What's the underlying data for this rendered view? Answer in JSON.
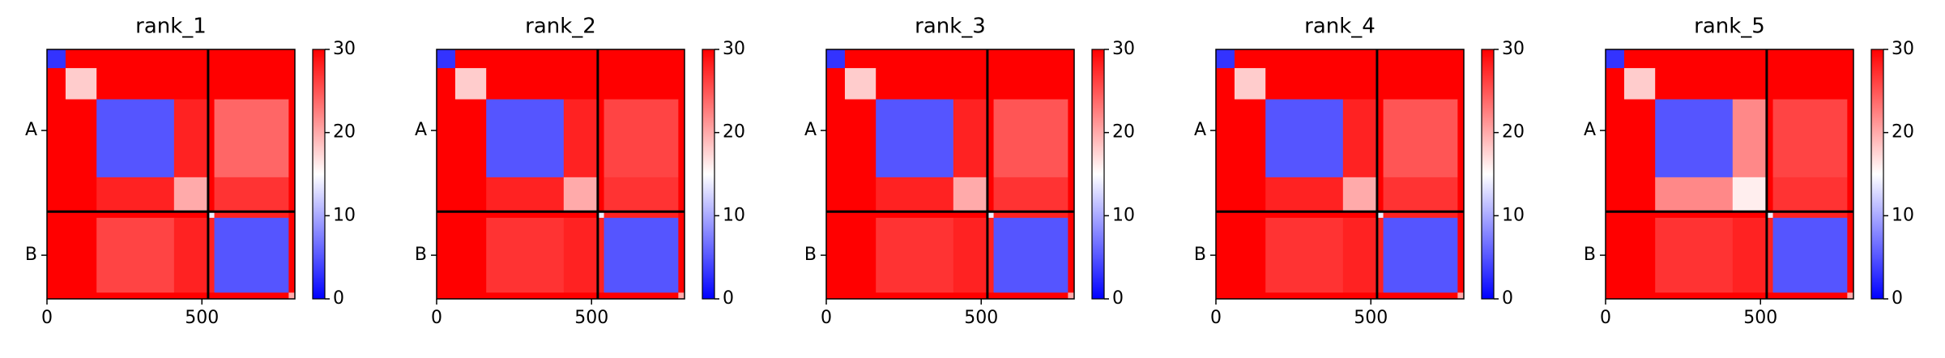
{
  "chart_data": [
    {
      "type": "heatmap",
      "title": "rank_1",
      "colormap": "bwr",
      "edges": [
        0,
        60,
        160,
        410,
        520,
        540,
        780,
        800
      ],
      "xlim": [
        0,
        800
      ],
      "ylim": [
        0,
        800
      ],
      "xticks": [
        0,
        500
      ],
      "yticks": [
        {
          "value": 260,
          "label": "A"
        },
        {
          "value": 660,
          "label": "B"
        }
      ],
      "chain_breaks": [
        520
      ],
      "clim": [
        0,
        30
      ],
      "cticks": [
        0,
        10,
        20,
        30
      ],
      "values": [
        [
          3,
          30,
          30,
          30,
          30,
          30,
          30
        ],
        [
          30,
          18,
          30,
          30,
          30,
          30,
          30
        ],
        [
          30,
          30,
          5,
          28,
          30,
          24,
          30
        ],
        [
          30,
          30,
          28,
          20,
          30,
          27,
          30
        ],
        [
          30,
          30,
          30,
          30,
          14,
          28,
          30
        ],
        [
          30,
          30,
          26,
          28,
          28,
          5,
          30
        ],
        [
          30,
          30,
          30,
          30,
          30,
          30,
          20
        ]
      ]
    },
    {
      "type": "heatmap",
      "title": "rank_2",
      "colormap": "bwr",
      "edges": [
        0,
        60,
        160,
        410,
        520,
        540,
        780,
        800
      ],
      "xlim": [
        0,
        800
      ],
      "ylim": [
        0,
        800
      ],
      "xticks": [
        0,
        500
      ],
      "yticks": [
        {
          "value": 260,
          "label": "A"
        },
        {
          "value": 660,
          "label": "B"
        }
      ],
      "chain_breaks": [
        520
      ],
      "clim": [
        0,
        30
      ],
      "cticks": [
        0,
        10,
        20,
        30
      ],
      "values": [
        [
          3,
          30,
          30,
          30,
          30,
          30,
          30
        ],
        [
          30,
          18,
          30,
          30,
          30,
          30,
          30
        ],
        [
          30,
          30,
          5,
          28,
          30,
          26,
          30
        ],
        [
          30,
          30,
          28,
          20,
          30,
          27,
          30
        ],
        [
          30,
          30,
          30,
          30,
          14,
          28,
          30
        ],
        [
          30,
          30,
          27,
          28,
          28,
          5,
          30
        ],
        [
          30,
          30,
          30,
          30,
          30,
          30,
          20
        ]
      ]
    },
    {
      "type": "heatmap",
      "title": "rank_3",
      "colormap": "bwr",
      "edges": [
        0,
        60,
        160,
        410,
        520,
        540,
        780,
        800
      ],
      "xlim": [
        0,
        800
      ],
      "ylim": [
        0,
        800
      ],
      "xticks": [
        0,
        500
      ],
      "yticks": [
        {
          "value": 260,
          "label": "A"
        },
        {
          "value": 660,
          "label": "B"
        }
      ],
      "chain_breaks": [
        520
      ],
      "clim": [
        0,
        30
      ],
      "cticks": [
        0,
        10,
        20,
        30
      ],
      "values": [
        [
          3,
          30,
          30,
          30,
          30,
          30,
          30
        ],
        [
          30,
          18,
          30,
          30,
          30,
          30,
          30
        ],
        [
          30,
          30,
          5,
          28,
          30,
          25,
          30
        ],
        [
          30,
          30,
          28,
          20,
          30,
          27,
          30
        ],
        [
          30,
          30,
          30,
          30,
          14,
          28,
          30
        ],
        [
          30,
          30,
          27,
          28,
          28,
          5,
          30
        ],
        [
          30,
          30,
          30,
          30,
          30,
          30,
          20
        ]
      ]
    },
    {
      "type": "heatmap",
      "title": "rank_4",
      "colormap": "bwr",
      "edges": [
        0,
        60,
        160,
        410,
        520,
        540,
        780,
        800
      ],
      "xlim": [
        0,
        800
      ],
      "ylim": [
        0,
        800
      ],
      "xticks": [
        0,
        500
      ],
      "yticks": [
        {
          "value": 260,
          "label": "A"
        },
        {
          "value": 660,
          "label": "B"
        }
      ],
      "chain_breaks": [
        520
      ],
      "clim": [
        0,
        30
      ],
      "cticks": [
        0,
        10,
        20,
        30
      ],
      "values": [
        [
          3,
          30,
          30,
          30,
          30,
          30,
          30
        ],
        [
          30,
          18,
          30,
          30,
          30,
          30,
          30
        ],
        [
          30,
          30,
          5,
          28,
          30,
          25,
          30
        ],
        [
          30,
          30,
          28,
          20,
          30,
          27,
          30
        ],
        [
          30,
          30,
          30,
          30,
          14,
          28,
          30
        ],
        [
          30,
          30,
          27,
          28,
          28,
          5,
          30
        ],
        [
          30,
          30,
          30,
          30,
          30,
          30,
          20
        ]
      ]
    },
    {
      "type": "heatmap",
      "title": "rank_5",
      "colormap": "bwr",
      "edges": [
        0,
        60,
        160,
        410,
        520,
        540,
        780,
        800
      ],
      "xlim": [
        0,
        800
      ],
      "ylim": [
        0,
        800
      ],
      "xticks": [
        0,
        500
      ],
      "yticks": [
        {
          "value": 260,
          "label": "A"
        },
        {
          "value": 660,
          "label": "B"
        }
      ],
      "chain_breaks": [
        520
      ],
      "clim": [
        0,
        30
      ],
      "cticks": [
        0,
        10,
        20,
        30
      ],
      "values": [
        [
          3,
          30,
          30,
          30,
          30,
          30,
          30
        ],
        [
          30,
          18,
          30,
          30,
          30,
          30,
          30
        ],
        [
          30,
          30,
          5,
          22,
          30,
          26,
          30
        ],
        [
          30,
          30,
          22,
          16,
          30,
          27,
          30
        ],
        [
          30,
          30,
          30,
          30,
          14,
          28,
          30
        ],
        [
          30,
          30,
          27,
          28,
          28,
          5,
          30
        ],
        [
          30,
          30,
          30,
          30,
          30,
          30,
          20
        ]
      ]
    }
  ]
}
